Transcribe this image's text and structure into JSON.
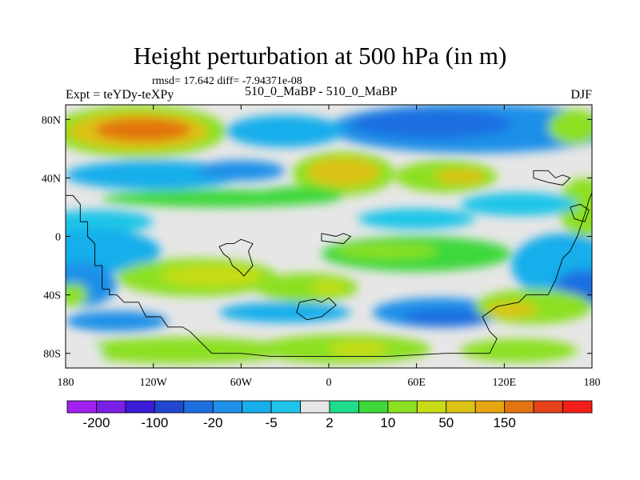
{
  "chart_data": {
    "type": "contour_map",
    "title": "Height perturbation at 500 hPa (in m)",
    "stats_label": "rmsd= 17.642 diff= -7.94371e-08",
    "left_label": "Expt = teYDy-teXPy",
    "center_label": "510_0_MaBP - 510_0_MaBP",
    "right_label": "DJF",
    "x_range": [
      -180,
      180
    ],
    "y_range": [
      -90,
      90
    ],
    "x_ticks": [
      {
        "value": -180,
        "label": "180"
      },
      {
        "value": -120,
        "label": "120W"
      },
      {
        "value": -60,
        "label": "60W"
      },
      {
        "value": 0,
        "label": "0"
      },
      {
        "value": 60,
        "label": "60E"
      },
      {
        "value": 120,
        "label": "120E"
      },
      {
        "value": 180,
        "label": "180"
      }
    ],
    "y_ticks": [
      {
        "value": 80,
        "label": "80N"
      },
      {
        "value": 40,
        "label": "40N"
      },
      {
        "value": 0,
        "label": "0"
      },
      {
        "value": -40,
        "label": "40S"
      },
      {
        "value": -80,
        "label": "80S"
      }
    ],
    "colorbar": {
      "colors": [
        "#a020f0",
        "#7a1fe6",
        "#3a1bd6",
        "#2147cf",
        "#1e6ee0",
        "#1f90e8",
        "#18aeeb",
        "#1ec5e8",
        "#e6e6e6",
        "#1edc8c",
        "#3ed83a",
        "#8ce022",
        "#c8dc15",
        "#dcc215",
        "#e7a50f",
        "#e27511",
        "#e4421a",
        "#f31e1a"
      ],
      "labels": [
        {
          "index": 1,
          "text": "-200"
        },
        {
          "index": 3,
          "text": "-100"
        },
        {
          "index": 5,
          "text": "-20"
        },
        {
          "index": 7,
          "text": "-5"
        },
        {
          "index": 9,
          "text": "2"
        },
        {
          "index": 11,
          "text": "10"
        },
        {
          "index": 13,
          "text": "50"
        },
        {
          "index": 15,
          "text": "150"
        }
      ]
    },
    "field": {
      "background_level": 8,
      "anomalies": [
        {
          "lon": -130,
          "lat": 72,
          "rx": 60,
          "ry": 18,
          "level": 11
        },
        {
          "lon": -130,
          "lat": 72,
          "rx": 48,
          "ry": 13,
          "level": 13
        },
        {
          "lon": -127,
          "lat": 73,
          "rx": 33,
          "ry": 8,
          "level": 15
        },
        {
          "lon": 100,
          "lat": 74,
          "rx": 100,
          "ry": 17,
          "level": 5
        },
        {
          "lon": 70,
          "lat": 77,
          "rx": 55,
          "ry": 10,
          "level": 4
        },
        {
          "lon": -30,
          "lat": 72,
          "rx": 40,
          "ry": 11,
          "level": 6
        },
        {
          "lon": 168,
          "lat": 75,
          "rx": 18,
          "ry": 12,
          "level": 11
        },
        {
          "lon": 10,
          "lat": 43,
          "rx": 35,
          "ry": 15,
          "level": 11
        },
        {
          "lon": 10,
          "lat": 44,
          "rx": 25,
          "ry": 10,
          "level": 13
        },
        {
          "lon": 80,
          "lat": 41,
          "rx": 35,
          "ry": 11,
          "level": 11
        },
        {
          "lon": 90,
          "lat": 41,
          "rx": 18,
          "ry": 5,
          "level": 13
        },
        {
          "lon": 175,
          "lat": 20,
          "rx": 18,
          "ry": 20,
          "level": 11
        },
        {
          "lon": -120,
          "lat": 42,
          "rx": 60,
          "ry": 10,
          "level": 6
        },
        {
          "lon": -60,
          "lat": 45,
          "rx": 30,
          "ry": 7,
          "level": 5
        },
        {
          "lon": -75,
          "lat": 26,
          "rx": 80,
          "ry": 6,
          "level": 10
        },
        {
          "lon": -20,
          "lat": 28,
          "rx": 30,
          "ry": 6,
          "level": 10
        },
        {
          "lon": 130,
          "lat": 22,
          "rx": 40,
          "ry": 8,
          "level": 7
        },
        {
          "lon": 60,
          "lat": 12,
          "rx": 40,
          "ry": 7,
          "level": 7
        },
        {
          "lon": -160,
          "lat": 10,
          "rx": 40,
          "ry": 8,
          "level": 7
        },
        {
          "lon": -160,
          "lat": -10,
          "rx": 45,
          "ry": 15,
          "level": 6
        },
        {
          "lon": -170,
          "lat": -33,
          "rx": 25,
          "ry": 15,
          "level": 5
        },
        {
          "lon": -175,
          "lat": -40,
          "rx": 10,
          "ry": 8,
          "level": 11
        },
        {
          "lon": 160,
          "lat": -20,
          "rx": 35,
          "ry": 22,
          "level": 6
        },
        {
          "lon": 175,
          "lat": -35,
          "rx": 20,
          "ry": 12,
          "level": 4
        },
        {
          "lon": 60,
          "lat": -12,
          "rx": 65,
          "ry": 12,
          "level": 10
        },
        {
          "lon": 40,
          "lat": -10,
          "rx": 35,
          "ry": 5,
          "level": 11
        },
        {
          "lon": -90,
          "lat": -28,
          "rx": 55,
          "ry": 13,
          "level": 11
        },
        {
          "lon": -80,
          "lat": -27,
          "rx": 35,
          "ry": 7,
          "level": 12
        },
        {
          "lon": -15,
          "lat": -35,
          "rx": 35,
          "ry": 10,
          "level": 11
        },
        {
          "lon": 0,
          "lat": -35,
          "rx": 12,
          "ry": 4,
          "level": 12
        },
        {
          "lon": -30,
          "lat": -52,
          "rx": 45,
          "ry": 7,
          "level": 6
        },
        {
          "lon": 75,
          "lat": -52,
          "rx": 45,
          "ry": 10,
          "level": 5
        },
        {
          "lon": 80,
          "lat": -56,
          "rx": 30,
          "ry": 6,
          "level": 4
        },
        {
          "lon": -145,
          "lat": -58,
          "rx": 35,
          "ry": 7,
          "level": 5
        },
        {
          "lon": 140,
          "lat": -48,
          "rx": 40,
          "ry": 12,
          "level": 11
        },
        {
          "lon": 125,
          "lat": -50,
          "rx": 18,
          "ry": 5,
          "level": 13
        },
        {
          "lon": -100,
          "lat": -78,
          "rx": 75,
          "ry": 9,
          "level": 11
        },
        {
          "lon": 10,
          "lat": -77,
          "rx": 60,
          "ry": 10,
          "level": 11
        },
        {
          "lon": 20,
          "lat": -77,
          "rx": 20,
          "ry": 5,
          "level": 12
        },
        {
          "lon": 130,
          "lat": -78,
          "rx": 40,
          "ry": 8,
          "level": 11
        },
        {
          "lon": -170,
          "lat": -80,
          "rx": 15,
          "ry": 8,
          "level": 8
        }
      ]
    },
    "coastlines": [
      "-180,28 -175,28 -170,22 -170,10 -165,10 -165,0 -160,-5 -160,-20 -155,-20 -155,-36 -150,-36 -150,-40 -145,-40 -140,-45 -130,-45 -125,-55 -115,-55 -110,-62 -100,-62 -95,-65 -90,-70 -80,-80 -60,-80 -40,-82 0,-82 40,-82 80,-80 110,-80 115,-70 110,-65 105,-55 115,-48 130,-45 135,-40 150,-40 155,-30 160,-15 165,-10 170,0 175,15 178,25 180,30",
      "-75,-7 -70,-5 -65,-5 -60,-2 -52,-5 -55,-10 -52,-20 -58,-27 -62,-23 -66,-20 -68,-15 -72,-12 -75,-7",
      "-5,2 5,0 10,2 15,0 10,-5 -5,-3 -5,2",
      "-20,-45 -10,-43 -5,-45 0,-42 5,-47 -5,-55 -15,-57 -22,-52 -20,-45",
      "140,45 150,45 155,40 160,42 165,40 160,35 150,37 140,40 140,45",
      "165,20 172,22 178,18 175,10 168,12 165,20"
    ]
  }
}
